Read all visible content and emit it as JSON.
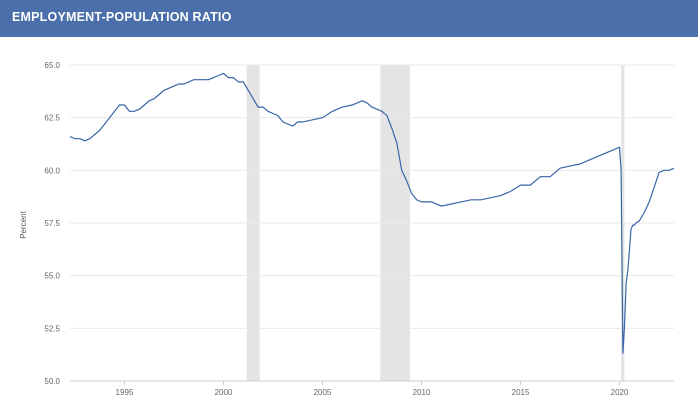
{
  "header": {
    "title": "EMPLOYMENT-POPULATION RATIO"
  },
  "colors": {
    "header_bg": "#4a6faa",
    "line": "#3a66a7",
    "recession_band": "#e4e4e4",
    "grid": "#eaeaea"
  },
  "chart_data": {
    "type": "line",
    "title": "EMPLOYMENT-POPULATION RATIO",
    "xlabel": "",
    "ylabel": "Percent",
    "xlim": [
      1992.25,
      2022.75
    ],
    "ylim": [
      50.0,
      65.0
    ],
    "yticks": [
      "50.0",
      "52.5",
      "55.0",
      "57.5",
      "60.0",
      "62.5",
      "65.0"
    ],
    "xticks": [
      "1995",
      "2000",
      "2005",
      "2010",
      "2015",
      "2020"
    ],
    "grid": true,
    "legend": "none",
    "recession_bands": [
      [
        2001.17,
        2001.83
      ],
      [
        2007.92,
        2009.42
      ],
      [
        2020.08,
        2020.25
      ]
    ],
    "series": [
      {
        "x": [
          1992.25,
          1992.5,
          1992.75,
          1993.0,
          1993.25,
          1993.5,
          1993.75,
          1994.0,
          1994.25,
          1994.5,
          1994.75,
          1995.0,
          1995.25,
          1995.5,
          1995.75,
          1996.0,
          1996.25,
          1996.5,
          1996.75,
          1997.0,
          1997.25,
          1997.5,
          1997.75,
          1998.0,
          1998.25,
          1998.5,
          1998.75,
          1999.0,
          1999.25,
          1999.5,
          1999.75,
          2000.0,
          2000.25,
          2000.5,
          2000.75,
          2001.0,
          2001.25,
          2001.5,
          2001.75,
          2002.0,
          2002.25,
          2002.5,
          2002.75,
          2003.0,
          2003.25,
          2003.5,
          2003.75,
          2004.0,
          2004.5,
          2005.0,
          2005.5,
          2006.0,
          2006.5,
          2007.0,
          2007.25,
          2007.5,
          2007.75,
          2008.0,
          2008.25,
          2008.5,
          2008.75,
          2009.0,
          2009.25,
          2009.5,
          2009.75,
          2010.0,
          2010.5,
          2011.0,
          2011.5,
          2012.0,
          2012.5,
          2013.0,
          2013.5,
          2014.0,
          2014.5,
          2015.0,
          2015.5,
          2016.0,
          2016.5,
          2017.0,
          2017.5,
          2018.0,
          2018.5,
          2019.0,
          2019.5,
          2020.0,
          2020.08,
          2020.17,
          2020.25,
          2020.33,
          2020.42,
          2020.5,
          2020.58,
          2020.67,
          2020.75,
          2020.83,
          2021.0,
          2021.25,
          2021.5,
          2021.75,
          2022.0,
          2022.25,
          2022.5,
          2022.75
        ],
        "y": [
          61.6,
          61.5,
          61.5,
          61.4,
          61.5,
          61.7,
          61.9,
          62.2,
          62.5,
          62.8,
          63.1,
          63.1,
          62.8,
          62.8,
          62.9,
          63.1,
          63.3,
          63.4,
          63.6,
          63.8,
          63.9,
          64.0,
          64.1,
          64.1,
          64.2,
          64.3,
          64.3,
          64.3,
          64.3,
          64.4,
          64.5,
          64.6,
          64.4,
          64.4,
          64.2,
          64.2,
          63.8,
          63.4,
          63.0,
          63.0,
          62.8,
          62.7,
          62.6,
          62.3,
          62.2,
          62.1,
          62.3,
          62.3,
          62.4,
          62.5,
          62.8,
          63.0,
          63.1,
          63.3,
          63.2,
          63.0,
          62.9,
          62.8,
          62.6,
          62.0,
          61.3,
          60.0,
          59.5,
          58.9,
          58.6,
          58.5,
          58.5,
          58.3,
          58.4,
          58.5,
          58.6,
          58.6,
          58.7,
          58.8,
          59.0,
          59.3,
          59.3,
          59.7,
          59.7,
          60.1,
          60.2,
          60.3,
          60.5,
          60.7,
          60.9,
          61.1,
          60.0,
          51.3,
          52.6,
          54.6,
          55.3,
          56.2,
          57.2,
          57.4,
          57.4,
          57.5,
          57.6,
          58.0,
          58.5,
          59.2,
          59.9,
          60.0,
          60.0,
          60.1
        ]
      }
    ]
  }
}
